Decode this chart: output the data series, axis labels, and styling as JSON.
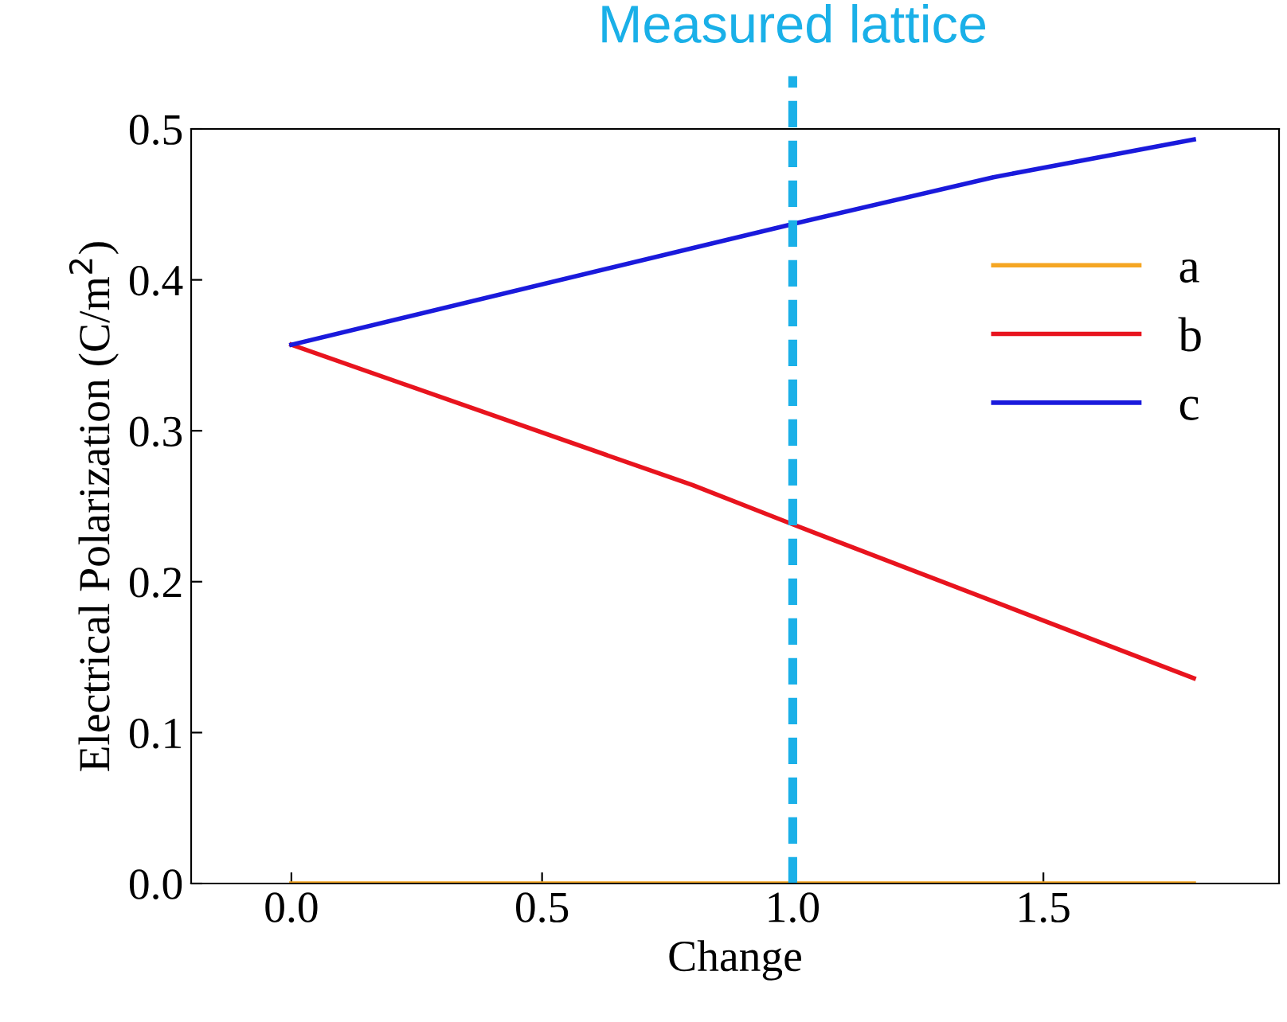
{
  "chart_data": {
    "type": "line",
    "xlabel": "Change",
    "ylabel": "Electrical Polarization (C/m$^{2}$)",
    "xlim": [
      -0.2,
      1.97
    ],
    "xticks": [
      {
        "value": 0.0,
        "label": "0.0"
      },
      0.5,
      {
        "value": 1.0,
        "label": "1.0"
      },
      1.5
    ],
    "ylim": [
      0,
      0.5
    ],
    "yticks": [
      {
        "value": 0.0,
        "label": "0.0"
      },
      0.1,
      0.2,
      0.3,
      0.4,
      0.5
    ],
    "grid": false,
    "legend": "top right",
    "marker": "none",
    "line_style": "solid",
    "series": [
      {
        "name": "a",
        "color": "#f5a623",
        "x": [
          0,
          1.8
        ],
        "values": [
          0,
          0
        ]
      },
      {
        "name": "b",
        "color": "#e8141e",
        "x": [
          0,
          0.8,
          1.0,
          1.8
        ],
        "values": [
          0.357,
          0.264,
          0.238,
          0.136
        ]
      },
      {
        "name": "c",
        "color": "#1a1adc",
        "x": [
          0,
          0.8,
          1.0,
          1.4,
          1.8
        ],
        "values": [
          0.357,
          0.421,
          0.437,
          0.468,
          0.493
        ]
      }
    ],
    "ref_lines": [
      {
        "axis": "x",
        "value": 1.0,
        "label": "Measured lattice",
        "color": "#1ab0e8",
        "line_style": "dashed"
      }
    ]
  }
}
